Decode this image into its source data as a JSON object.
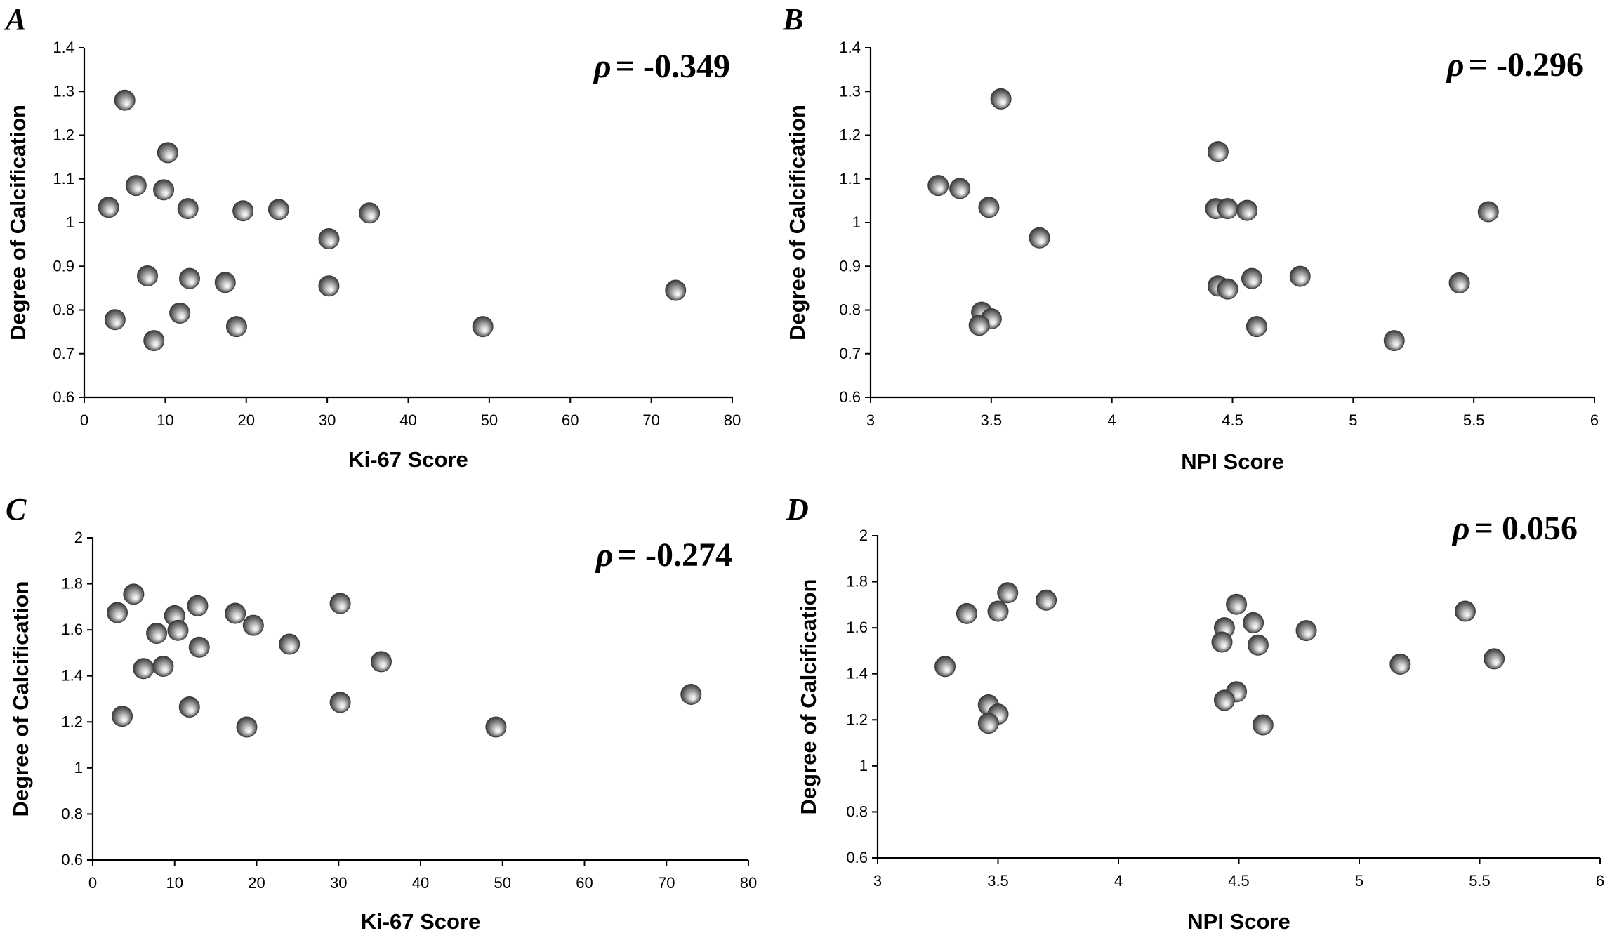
{
  "chart_data": [
    {
      "type": "scatter",
      "panel": "A",
      "annotation": "= -0.349",
      "annotation_symbol": "ρ",
      "xlabel": "Ki-67 Score",
      "ylabel": "Degree of Calcification",
      "xlim": [
        0,
        80
      ],
      "ylim": [
        0.6,
        1.4
      ],
      "xticks": [
        0,
        10,
        20,
        30,
        40,
        50,
        60,
        70,
        80
      ],
      "yticks": [
        0.6,
        0.7,
        0.8,
        0.9,
        1,
        1.1,
        1.2,
        1.3,
        1.4
      ],
      "points": [
        [
          5,
          1.28
        ],
        [
          10.3,
          1.16
        ],
        [
          6.4,
          1.085
        ],
        [
          9.8,
          1.075
        ],
        [
          3,
          1.035
        ],
        [
          12.8,
          1.032
        ],
        [
          19.6,
          1.027
        ],
        [
          24,
          1.03
        ],
        [
          35.2,
          1.022
        ],
        [
          30.2,
          0.963
        ],
        [
          7.8,
          0.878
        ],
        [
          13,
          0.872
        ],
        [
          17.4,
          0.863
        ],
        [
          30.2,
          0.855
        ],
        [
          73,
          0.845
        ],
        [
          11.8,
          0.793
        ],
        [
          3.8,
          0.778
        ],
        [
          18.8,
          0.762
        ],
        [
          49.2,
          0.762
        ],
        [
          8.6,
          0.73
        ]
      ]
    },
    {
      "type": "scatter",
      "panel": "B",
      "annotation": "= -0.296",
      "annotation_symbol": "ρ",
      "xlabel": "NPI Score",
      "ylabel": "Degree of Calcification",
      "xlim": [
        3,
        6
      ],
      "ylim": [
        0.6,
        1.4
      ],
      "xticks": [
        3,
        3.5,
        4,
        4.5,
        5,
        5.5,
        6
      ],
      "yticks": [
        0.6,
        0.7,
        0.8,
        0.9,
        1,
        1.1,
        1.2,
        1.3,
        1.4
      ],
      "points": [
        [
          3.54,
          1.283
        ],
        [
          4.44,
          1.162
        ],
        [
          3.28,
          1.085
        ],
        [
          3.37,
          1.078
        ],
        [
          3.49,
          1.035
        ],
        [
          4.43,
          1.032
        ],
        [
          4.48,
          1.032
        ],
        [
          4.56,
          1.028
        ],
        [
          5.56,
          1.025
        ],
        [
          3.7,
          0.965
        ],
        [
          4.78,
          0.877
        ],
        [
          4.58,
          0.872
        ],
        [
          5.44,
          0.862
        ],
        [
          4.44,
          0.855
        ],
        [
          4.48,
          0.848
        ],
        [
          3.46,
          0.795
        ],
        [
          3.5,
          0.78
        ],
        [
          3.45,
          0.765
        ],
        [
          4.6,
          0.762
        ],
        [
          5.17,
          0.73
        ]
      ]
    },
    {
      "type": "scatter",
      "panel": "C",
      "annotation": "= -0.274",
      "annotation_symbol": "ρ",
      "xlabel": "Ki-67 Score",
      "ylabel": "Degree of Calcification",
      "xlim": [
        0,
        80
      ],
      "ylim": [
        0.6,
        2
      ],
      "xticks": [
        0,
        10,
        20,
        30,
        40,
        50,
        60,
        70,
        80
      ],
      "yticks": [
        0.6,
        0.8,
        1,
        1.2,
        1.4,
        1.6,
        1.8,
        2
      ],
      "points": [
        [
          5,
          1.755
        ],
        [
          30.2,
          1.715
        ],
        [
          12.8,
          1.705
        ],
        [
          3,
          1.675
        ],
        [
          17.4,
          1.672
        ],
        [
          10,
          1.662
        ],
        [
          19.6,
          1.62
        ],
        [
          10.4,
          1.598
        ],
        [
          7.8,
          1.585
        ],
        [
          24,
          1.538
        ],
        [
          13,
          1.525
        ],
        [
          35.2,
          1.462
        ],
        [
          8.6,
          1.442
        ],
        [
          6.2,
          1.432
        ],
        [
          73,
          1.32
        ],
        [
          30.2,
          1.285
        ],
        [
          11.8,
          1.265
        ],
        [
          3.6,
          1.225
        ],
        [
          18.8,
          1.178
        ],
        [
          49.2,
          1.178
        ]
      ]
    },
    {
      "type": "scatter",
      "panel": "D",
      "annotation": "= 0.056",
      "annotation_symbol": "ρ",
      "xlabel": "NPI Score",
      "ylabel": "Degree of Calcification",
      "xlim": [
        3,
        6
      ],
      "ylim": [
        0.6,
        2
      ],
      "xticks": [
        3,
        3.5,
        4,
        4.5,
        5,
        5.5,
        6
      ],
      "yticks": [
        0.6,
        0.8,
        1,
        1.2,
        1.4,
        1.6,
        1.8,
        2
      ],
      "points": [
        [
          3.54,
          1.752
        ],
        [
          3.7,
          1.72
        ],
        [
          4.49,
          1.702
        ],
        [
          3.5,
          1.672
        ],
        [
          5.44,
          1.672
        ],
        [
          3.37,
          1.662
        ],
        [
          4.56,
          1.622
        ],
        [
          4.44,
          1.6
        ],
        [
          4.78,
          1.588
        ],
        [
          4.43,
          1.538
        ],
        [
          4.58,
          1.525
        ],
        [
          5.56,
          1.465
        ],
        [
          5.17,
          1.442
        ],
        [
          3.28,
          1.432
        ],
        [
          4.49,
          1.322
        ],
        [
          4.44,
          1.285
        ],
        [
          3.46,
          1.265
        ],
        [
          3.5,
          1.225
        ],
        [
          3.46,
          1.185
        ],
        [
          4.6,
          1.178
        ]
      ]
    }
  ]
}
